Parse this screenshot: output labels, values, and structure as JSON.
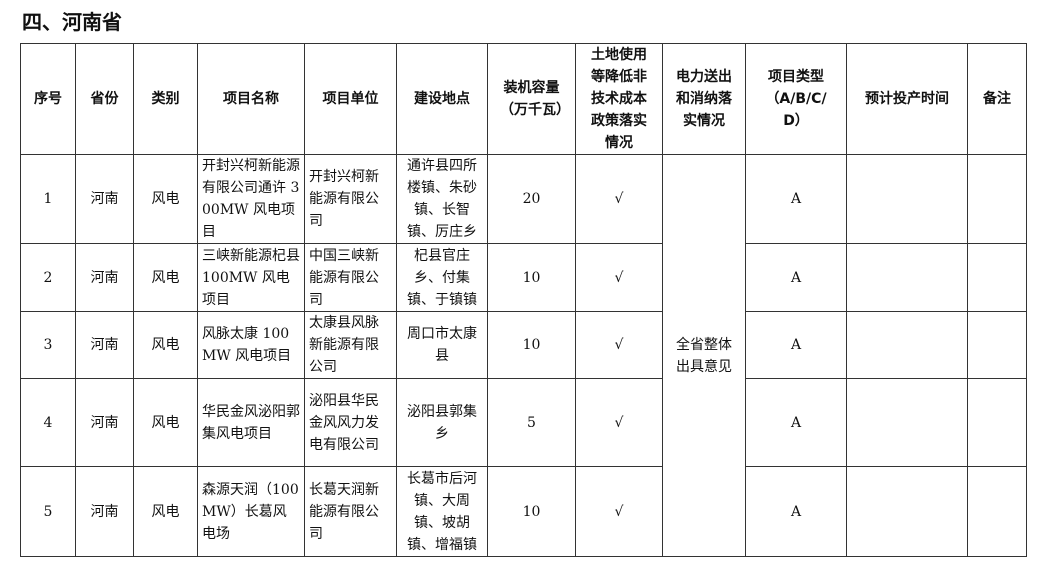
{
  "title": "四、河南省",
  "headers": [
    "序号",
    "省份",
    "类别",
    "项目名称",
    "项目单位",
    "建设地点",
    "装机容量（万千瓦）",
    "土地使用等降低非技术成本政策落实情况",
    "电力送出和消纳落实情况",
    "项目类型（A/B/C/D）",
    "预计投产时间",
    "备注"
  ],
  "power_note": "全省整体出具意见",
  "rows": [
    {
      "no": "1",
      "province": "河南",
      "category": "风电",
      "name": "开封兴柯新能源有限公司通许 300MW 风电项目",
      "unit": "开封兴柯新能源有限公司",
      "location": "通许县四所楼镇、朱砂镇、长智镇、厉庄乡",
      "capacity": "20",
      "land": "√",
      "type": "A",
      "date": "",
      "remark": ""
    },
    {
      "no": "2",
      "province": "河南",
      "category": "风电",
      "name": "三峡新能源杞县 100MW 风电项目",
      "unit": "中国三峡新能源有限公司",
      "location": "杞县官庄乡、付集镇、于镇镇",
      "capacity": "10",
      "land": "√",
      "type": "A",
      "date": "",
      "remark": ""
    },
    {
      "no": "3",
      "province": "河南",
      "category": "风电",
      "name": "风脉太康 100MW 风电项目",
      "unit": "太康县风脉新能源有限公司",
      "location": "周口市太康县",
      "capacity": "10",
      "land": "√",
      "type": "A",
      "date": "",
      "remark": ""
    },
    {
      "no": "4",
      "province": "河南",
      "category": "风电",
      "name": "华民金风泌阳郭集风电项目",
      "unit": "泌阳县华民金风风力发电有限公司",
      "location": "泌阳县郭集乡",
      "capacity": "5",
      "land": "√",
      "type": "A",
      "date": "",
      "remark": ""
    },
    {
      "no": "5",
      "province": "河南",
      "category": "风电",
      "name": "森源天润（100MW）长葛风电场",
      "unit": "长葛天润新能源有限公司",
      "location": "长葛市后河镇、大周镇、坡胡镇、增福镇",
      "capacity": "10",
      "land": "√",
      "type": "A",
      "date": "",
      "remark": ""
    }
  ]
}
